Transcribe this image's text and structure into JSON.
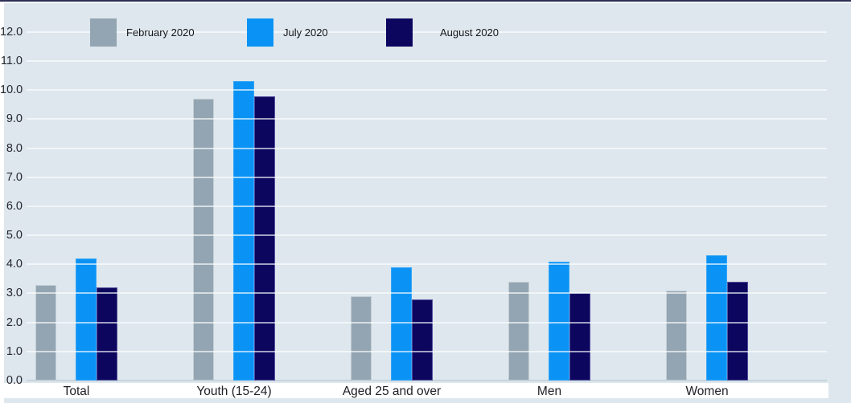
{
  "chart_data": {
    "type": "bar",
    "title": "",
    "categories": [
      "Total",
      "Youth (15-24)",
      "Aged 25 and over",
      "Men",
      "Women"
    ],
    "series": [
      {
        "name": "February 2020",
        "color": "#93a5b2",
        "values": [
          3.3,
          9.7,
          2.9,
          3.4,
          3.1
        ]
      },
      {
        "name": "July 2020",
        "color": "#0a93f5",
        "values": [
          4.2,
          10.3,
          3.9,
          4.1,
          4.3
        ]
      },
      {
        "name": "August 2020",
        "color": "#0c065f",
        "values": [
          3.2,
          9.8,
          2.8,
          3.0,
          3.4
        ]
      }
    ],
    "ylim": [
      0,
      12
    ],
    "ytick_step": 1,
    "yticks": [
      "0.0",
      "1.0",
      "2.0",
      "3.0",
      "4.0",
      "5.0",
      "6.0",
      "7.0",
      "8.0",
      "9.0",
      "10.0",
      "11.0",
      "12.0"
    ],
    "xlabel": "",
    "ylabel": "",
    "grid": "horizontal",
    "legend_position": "top",
    "colors": {
      "plot_background": "#dde7ed",
      "gridline": "#eef4f8",
      "baseline": "#c6d3da",
      "february_2020": "#93a5b2",
      "july_2020": "#0a93f5",
      "august_2020": "#0c065f"
    }
  }
}
